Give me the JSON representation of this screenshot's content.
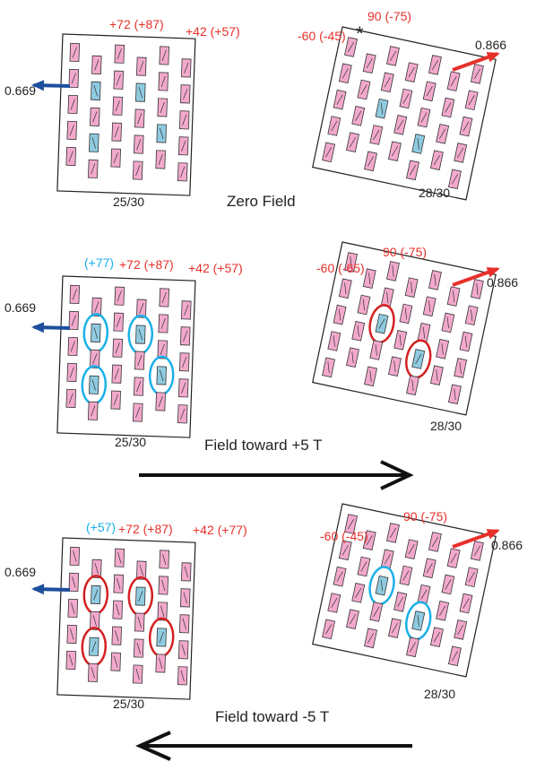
{
  "panels": [
    {
      "left": {
        "top_labels": [
          "+72 (+87)",
          "+42 (+57)"
        ],
        "moment": "0.669",
        "fraction": "25/30"
      },
      "right": {
        "top_labels": [
          "-60 (-45)",
          "90 (-75)"
        ],
        "marker": "*",
        "moment": "0.866",
        "fraction": "28/30"
      },
      "caption": "Zero Field"
    },
    {
      "left": {
        "highlight_label": "(+77)",
        "top_labels": [
          "+72 (+87)",
          "+42 (+57)"
        ],
        "moment": "0.669",
        "fraction": "25/30"
      },
      "right": {
        "top_labels": [
          "-60 (-65)",
          "90 (-75)"
        ],
        "moment": "0.866",
        "fraction": "28/30"
      },
      "caption": "Field toward +5 T"
    },
    {
      "left": {
        "highlight_label": "(+57)",
        "top_labels": [
          "+72 (+87)",
          "+42 (+77)"
        ],
        "moment": "0.669",
        "fraction": "25/30"
      },
      "right": {
        "top_labels": [
          "-60 (-45)",
          "90 (-75)"
        ],
        "moment": "0.866",
        "fraction": "28/30"
      },
      "caption": "Field toward -5 T"
    }
  ]
}
